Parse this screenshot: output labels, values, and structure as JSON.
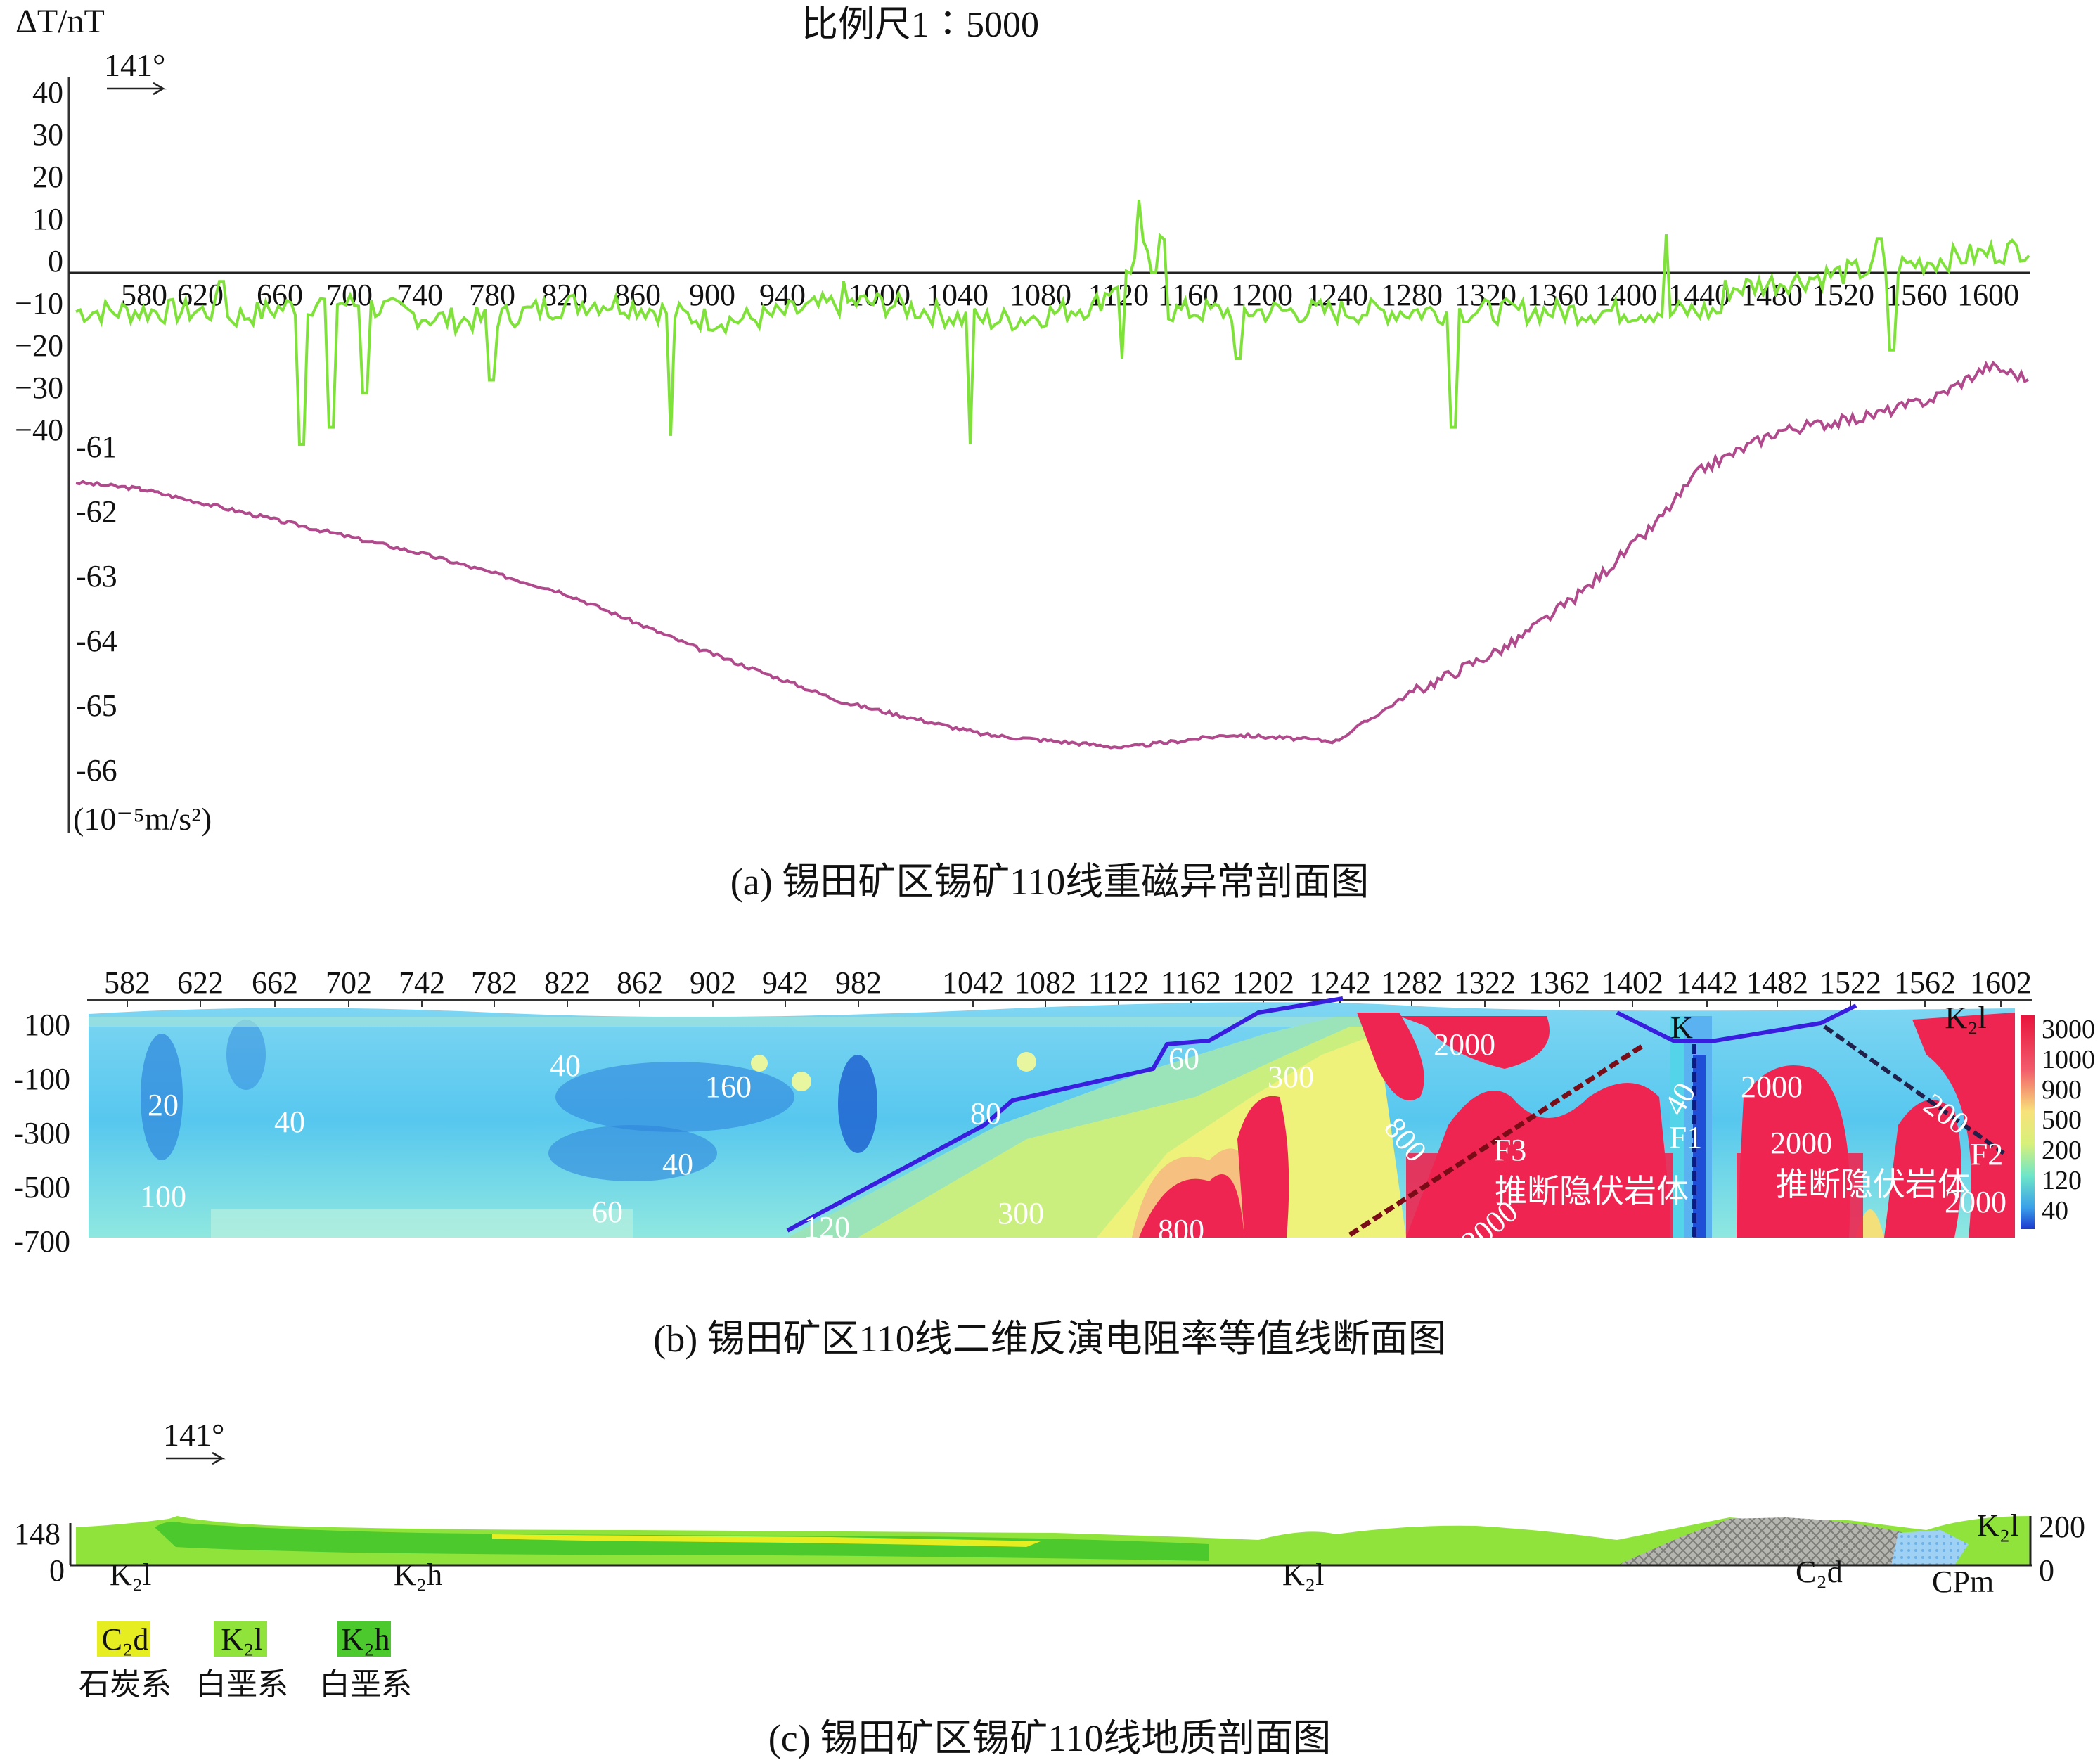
{
  "panel_a": {
    "y_unit_top": "ΔT/nT",
    "scale": "比例尺1∶5000",
    "azimuth": "141°",
    "mag_ticks": [
      "40",
      "30",
      "20",
      "10",
      "0",
      "−10",
      "−20",
      "−30",
      "−40"
    ],
    "grav_ticks": [
      "-61",
      "-62",
      "-63",
      "-64",
      "-65",
      "-66"
    ],
    "grav_unit": "(10⁻⁵m/s²)",
    "x_ticks": [
      "580",
      "620",
      "660",
      "700",
      "740",
      "780",
      "820",
      "860",
      "900",
      "940",
      "1000",
      "1040",
      "1080",
      "1120",
      "1160",
      "1200",
      "1240",
      "1280",
      "1320",
      "1360",
      "1400",
      "1440",
      "1480",
      "1520",
      "1560",
      "1600"
    ],
    "caption": "(a) 锡田矿区锡矿110线重磁异常剖面图",
    "colors": {
      "magnetic": "#7fe23a",
      "gravity": "#b04a8c"
    }
  },
  "panel_b": {
    "x_ticks": [
      "582",
      "622",
      "662",
      "702",
      "742",
      "782",
      "822",
      "862",
      "902",
      "942",
      "982",
      "1042",
      "1082",
      "1122",
      "1162",
      "1202",
      "1242",
      "1282",
      "1322",
      "1362",
      "1402",
      "1442",
      "1482",
      "1522",
      "1562",
      "1602"
    ],
    "y_ticks": [
      "100",
      "-100",
      "-300",
      "-500",
      "-700"
    ],
    "colorbar_labels": [
      "3000",
      "1000",
      "900",
      "500",
      "200",
      "120",
      "40"
    ],
    "contour_labels": [
      "20",
      "40",
      "100",
      "40",
      "160",
      "40",
      "60",
      "80",
      "120",
      "300",
      "60",
      "300",
      "800",
      "800",
      "2000",
      "2000",
      "40",
      "2000",
      "200",
      "2000",
      "2000"
    ],
    "annotations": [
      "F3",
      "F1",
      "F2",
      "推断隐伏岩体",
      "推断隐伏岩体",
      "K",
      "K₂l"
    ],
    "caption": "(b) 锡田矿区110线二维反演电阻率等值线断面图"
  },
  "panel_c": {
    "azimuth": "141°",
    "left_ticks": [
      "148",
      "0"
    ],
    "right_ticks": [
      "200",
      "0"
    ],
    "strata_labels": [
      "K₂l",
      "K₂h",
      "K₂l",
      "C₂d",
      "CPm",
      "K₂l"
    ],
    "legend": [
      {
        "code": "C₂d",
        "name": "石炭系",
        "color": "#e6ee22"
      },
      {
        "code": "K₂l",
        "name": "白垩系",
        "color": "#8fe33a"
      },
      {
        "code": "K₂h",
        "name": "白垩系",
        "color": "#4cc92c"
      }
    ],
    "caption": "(c) 锡田矿区锡矿110线地质剖面图"
  }
}
